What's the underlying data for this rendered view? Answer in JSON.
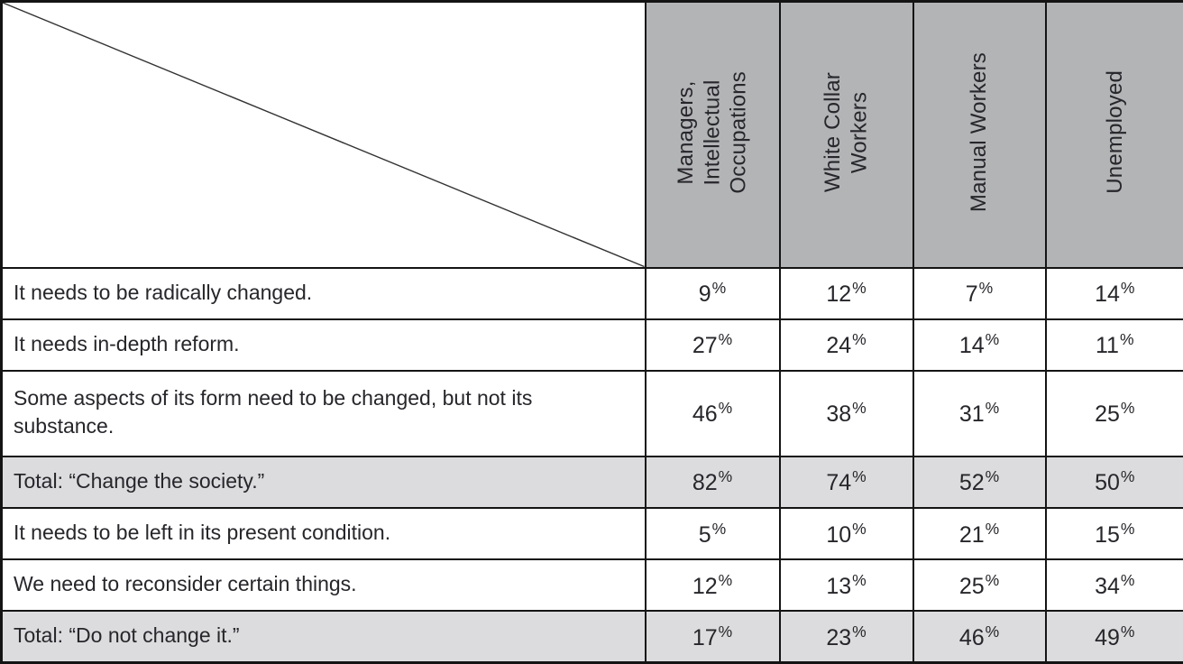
{
  "table": {
    "columns": [
      {
        "label": "Managers,\nIntellectual\nOccupations"
      },
      {
        "label": "White Collar\nWorkers"
      },
      {
        "label": "Manual Workers"
      },
      {
        "label": "Unemployed"
      }
    ],
    "rows": [
      {
        "label": "It needs to be radically changed.",
        "type": "normal",
        "values": [
          "9%",
          "12%",
          "7%",
          "14%"
        ]
      },
      {
        "label": "It needs in-depth reform.",
        "type": "normal",
        "values": [
          "27%",
          "24%",
          "14%",
          "11%"
        ]
      },
      {
        "label": "Some aspects of its form need to be changed, but not its substance.",
        "type": "normal",
        "values": [
          "46%",
          "38%",
          "31%",
          "25%"
        ]
      },
      {
        "label": "Total: “Change the society.”",
        "type": "total",
        "values": [
          "82%",
          "74%",
          "52%",
          "50%"
        ]
      },
      {
        "label": "It needs to be left in its present condition.",
        "type": "normal",
        "values": [
          "5%",
          "10%",
          "21%",
          "15%"
        ]
      },
      {
        "label": "We need to reconsider certain things.",
        "type": "normal",
        "values": [
          "12%",
          "13%",
          "25%",
          "34%"
        ]
      },
      {
        "label": "Total: “Do not change it.”",
        "type": "total",
        "values": [
          "17%",
          "23%",
          "46%",
          "49%"
        ]
      }
    ],
    "colors": {
      "header_bg": "#b3b4b6",
      "total_row_bg": "#dcdcde",
      "border": "#141414",
      "text": "#26262b"
    }
  }
}
